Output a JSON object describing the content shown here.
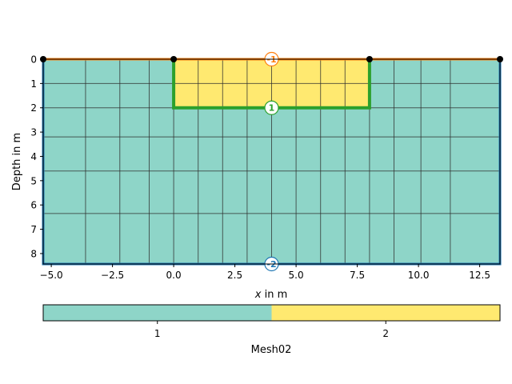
{
  "chart_data": {
    "type": "heatmap",
    "subtype": "mesh-cross-section",
    "xlabel_var": "x",
    "xlabel_rest": " in m",
    "ylabel": "Depth in m",
    "xlim": [
      -5.33,
      13.33
    ],
    "ylim": [
      0,
      8.43
    ],
    "y_inverted": true,
    "xticks": [
      -5.0,
      -2.5,
      0.0,
      2.5,
      5.0,
      7.5,
      10.0,
      12.5
    ],
    "xtick_labels": [
      "−5.0",
      "−2.5",
      "0.0",
      "2.5",
      "5.0",
      "7.5",
      "10.0",
      "12.5"
    ],
    "yticks": [
      0,
      1,
      2,
      3,
      4,
      5,
      6,
      7,
      8
    ],
    "ytick_labels": [
      "0",
      "1",
      "2",
      "3",
      "4",
      "5",
      "6",
      "7",
      "8"
    ],
    "mesh_x_lines": [
      -5.33,
      -3.6,
      -2.2,
      -1.0,
      0,
      1,
      2,
      3,
      4,
      5,
      6,
      7,
      8,
      9,
      10.1,
      11.3,
      13.33
    ],
    "mesh_y_lines": [
      0,
      1,
      2,
      3.2,
      4.6,
      6.35,
      8.43
    ],
    "regions": [
      {
        "marker": 1,
        "color": "#8ed5c8",
        "x": [
          -5.33,
          13.33
        ],
        "y": [
          0,
          8.43
        ]
      },
      {
        "marker": 2,
        "color": "#ffe970",
        "x": [
          0,
          8
        ],
        "y": [
          0,
          2
        ]
      }
    ],
    "boundaries": [
      {
        "label": "-1",
        "color": "#ff7f0e",
        "points": [
          [
            -5.33,
            0
          ],
          [
            13.33,
            0
          ]
        ],
        "label_at": [
          4,
          0
        ]
      },
      {
        "label": "1",
        "color": "#2ca02c",
        "points": [
          [
            0,
            0
          ],
          [
            0,
            2
          ],
          [
            8,
            2
          ],
          [
            8,
            0
          ]
        ],
        "label_at": [
          4,
          2
        ]
      },
      {
        "label": "-2",
        "color": "#1f77b4",
        "points": [
          [
            -5.33,
            0
          ],
          [
            -5.33,
            8.43
          ],
          [
            13.33,
            8.43
          ],
          [
            13.33,
            0
          ]
        ],
        "label_at": [
          4,
          8.43
        ]
      }
    ],
    "nodes": [
      [
        -5.33,
        0
      ],
      [
        0,
        0
      ],
      [
        8,
        0
      ],
      [
        13.33,
        0
      ]
    ],
    "colorbar": {
      "label": "Mesh02",
      "ticks": [
        "1",
        "2"
      ],
      "colors": [
        "#8ed5c8",
        "#ffe970"
      ]
    }
  }
}
